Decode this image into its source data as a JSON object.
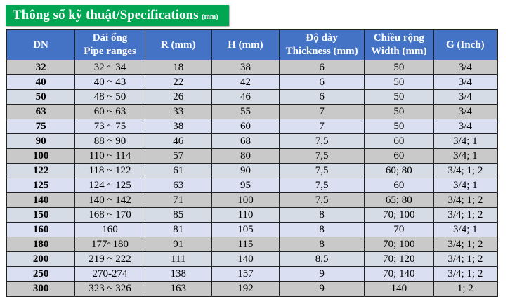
{
  "title": {
    "main": "Thông số kỹ thuật/Specifications",
    "unit": "(mm)"
  },
  "headers": [
    "DN",
    "Dải ống\nPipe ranges",
    "R (mm)",
    "H (mm)",
    "Độ dày\nThickness (mm)",
    "Chiều rộng\nWidth (mm)",
    "G (Inch)"
  ],
  "rows": [
    [
      "32",
      "32 ~ 34",
      "18",
      "38",
      "6",
      "50",
      "3/4"
    ],
    [
      "40",
      "40 ~ 43",
      "22",
      "42",
      "6",
      "50",
      "3/4"
    ],
    [
      "50",
      "48 ~ 50",
      "26",
      "46",
      "6",
      "50",
      "3/4"
    ],
    [
      "63",
      "60 ~ 63",
      "33",
      "55",
      "7",
      "50",
      "3/4"
    ],
    [
      "75",
      "73 ~ 75",
      "38",
      "60",
      "7",
      "50",
      "3/4"
    ],
    [
      "90",
      "88 ~ 90",
      "46",
      "68",
      "7,5",
      "60",
      "3/4; 1"
    ],
    [
      "100",
      "110 ~ 114",
      "57",
      "80",
      "7,5",
      "60",
      "3/4; 1"
    ],
    [
      "122",
      "118 ~ 122",
      "61",
      "90",
      "7,5",
      "60; 80",
      "3/4; 1; 2"
    ],
    [
      "125",
      "124 ~ 125",
      "63",
      "95",
      "7,5",
      "60",
      "3/4; 1"
    ],
    [
      "140",
      "140 ~ 142",
      "71",
      "100",
      "7,5",
      "65; 80",
      "3/4; 1; 2"
    ],
    [
      "150",
      "168 ~ 170",
      "85",
      "110",
      "8",
      "70; 100",
      "3/4; 1; 2"
    ],
    [
      "160",
      "160",
      "81",
      "105",
      "8",
      "70",
      "3/4; 1"
    ],
    [
      "180",
      "177~180",
      "91",
      "115",
      "8",
      "70; 100",
      "3/4; 1; 2"
    ],
    [
      "200",
      "219 ~ 222",
      "111",
      "140",
      "8,5",
      "70; 120",
      "3/4; 1; 2"
    ],
    [
      "250",
      "270-274",
      "138",
      "157",
      "9",
      "70; 140",
      "3/4; 1; 2"
    ],
    [
      "300",
      "323 ~ 326",
      "163",
      "192",
      "9",
      "140",
      "1; 2"
    ]
  ],
  "row_shading": [
    "g",
    "b",
    "s",
    "g",
    "b",
    "s",
    "g",
    "s",
    "b",
    "g",
    "s",
    "b",
    "g",
    "s",
    "b",
    "g"
  ],
  "colors": {
    "title_bg": "#00a651",
    "header_bg": "#4472c4",
    "row_gray": "#c9c9c9",
    "row_blue": "#dae0f2",
    "row_slate": "#d6dce5"
  }
}
